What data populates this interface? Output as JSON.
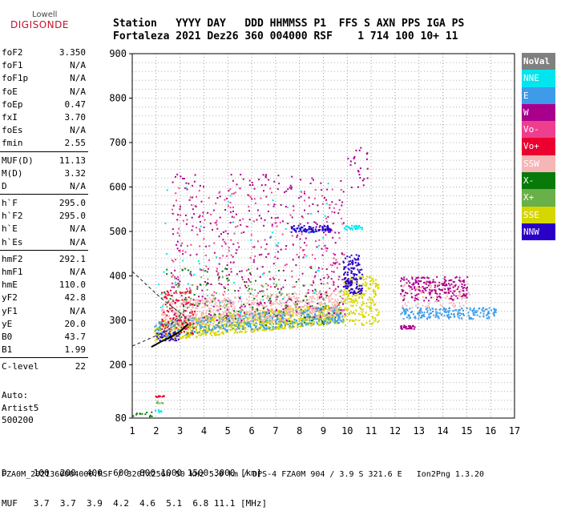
{
  "logo": {
    "line1": "Lowell",
    "line2": "DIGISONDE"
  },
  "header": {
    "line1": "Station   YYYY DAY   DDD HHMMSS P1  FFS S AXN PPS IGA PS",
    "line2": "Fortaleza 2021 Dez26 360 004000 RSF    1 714 100 10+ 11"
  },
  "params": [
    {
      "group": [
        {
          "name": "foF2",
          "value": "3.350"
        },
        {
          "name": "foF1",
          "value": "N/A"
        },
        {
          "name": "foF1p",
          "value": "N/A"
        },
        {
          "name": "foE",
          "value": "N/A"
        },
        {
          "name": "foEp",
          "value": "0.47"
        },
        {
          "name": "fxI",
          "value": "3.70"
        },
        {
          "name": "foEs",
          "value": "N/A"
        },
        {
          "name": "fmin",
          "value": "2.55"
        }
      ]
    },
    {
      "group": [
        {
          "name": "MUF(D)",
          "value": "11.13"
        },
        {
          "name": "M(D)",
          "value": "3.32"
        },
        {
          "name": "D",
          "value": "N/A"
        }
      ]
    },
    {
      "group": [
        {
          "name": "h`F",
          "value": "295.0"
        },
        {
          "name": "h`F2",
          "value": "295.0"
        },
        {
          "name": "h`E",
          "value": "N/A"
        },
        {
          "name": "h`Es",
          "value": "N/A"
        }
      ]
    },
    {
      "group": [
        {
          "name": "hmF2",
          "value": "292.1"
        },
        {
          "name": "hmF1",
          "value": "N/A"
        },
        {
          "name": "hmE",
          "value": "110.0"
        },
        {
          "name": "yF2",
          "value": "42.8"
        },
        {
          "name": "yF1",
          "value": "N/A"
        },
        {
          "name": "yE",
          "value": "20.0"
        },
        {
          "name": "B0",
          "value": "43.7"
        },
        {
          "name": "B1",
          "value": "1.99"
        }
      ]
    },
    {
      "group": [
        {
          "name": "C-level",
          "value": "22"
        }
      ]
    }
  ],
  "auto": {
    "line1": "Auto:",
    "line2": "Artist5",
    "line3": "500200"
  },
  "legend": [
    {
      "label": "NoVal",
      "color": "#808080"
    },
    {
      "label": "NNE",
      "color": "#00e5ee"
    },
    {
      "label": "E",
      "color": "#3d9bea"
    },
    {
      "label": "W",
      "color": "#a8008c"
    },
    {
      "label": "Vo-",
      "color": "#ee3f8f"
    },
    {
      "label": "Vo+",
      "color": "#ec0030"
    },
    {
      "label": "SSW",
      "color": "#f6b6b6"
    },
    {
      "label": "X-",
      "color": "#087a0a"
    },
    {
      "label": "X+",
      "color": "#6ab04a"
    },
    {
      "label": "SSE",
      "color": "#d6d600"
    },
    {
      "label": "NNW",
      "color": "#2a00c8"
    }
  ],
  "chart_data": {
    "type": "scatter",
    "title": "",
    "xlabel": "",
    "ylabel": "",
    "xlim": [
      1,
      17
    ],
    "ylim": [
      80,
      900
    ],
    "x_ticks": [
      "1",
      "2",
      "3",
      "4",
      "5",
      "6",
      "7",
      "8",
      "9",
      "10",
      "11",
      "12",
      "13",
      "14",
      "15",
      "16",
      "17"
    ],
    "y_ticks": [
      "80",
      "200",
      "300",
      "400",
      "500",
      "600",
      "700",
      "800",
      "900"
    ],
    "y_tick_values": [
      80,
      200,
      300,
      400,
      500,
      600,
      700,
      800,
      900
    ],
    "grid": true,
    "clusters": [
      {
        "color": "SSE",
        "fmin": 1.9,
        "fmax": 9.7,
        "hlo": 255,
        "hhi": 300,
        "rise": 40,
        "n": 900
      },
      {
        "color": "SSE",
        "fmin": 9.8,
        "fmax": 11.3,
        "hlo": 290,
        "hhi": 400,
        "rise": 0,
        "n": 220
      },
      {
        "color": "E",
        "fmin": 1.9,
        "fmax": 9.8,
        "hlo": 262,
        "hhi": 300,
        "rise": 35,
        "n": 420
      },
      {
        "color": "SSW",
        "fmin": 2.2,
        "fmax": 9.8,
        "hlo": 285,
        "hhi": 345,
        "rise": 25,
        "n": 700
      },
      {
        "color": "SSW",
        "fmin": 12.2,
        "fmax": 15.1,
        "hlo": 330,
        "hhi": 390,
        "rise": 0,
        "n": 120
      },
      {
        "color": "W",
        "fmin": 2.6,
        "fmax": 9.9,
        "hlo": 300,
        "hhi": 630,
        "rise": 0,
        "n": 380
      },
      {
        "color": "Vo-",
        "fmin": 2.6,
        "fmax": 9.9,
        "hlo": 310,
        "hhi": 600,
        "rise": 0,
        "n": 240
      },
      {
        "color": "Vo+",
        "fmin": 2.2,
        "fmax": 3.6,
        "hlo": 270,
        "hhi": 370,
        "rise": 0,
        "n": 110
      },
      {
        "color": "X-",
        "fmin": 2.2,
        "fmax": 9.8,
        "hlo": 290,
        "hhi": 420,
        "rise": 0,
        "n": 90
      },
      {
        "color": "X+",
        "fmin": 2.2,
        "fmax": 9.8,
        "hlo": 280,
        "hhi": 400,
        "rise": 0,
        "n": 120
      },
      {
        "color": "NNE",
        "fmin": 2.0,
        "fmax": 9.5,
        "hlo": 290,
        "hhi": 620,
        "rise": 0,
        "n": 60
      },
      {
        "color": "NNW",
        "fmin": 9.8,
        "fmax": 10.6,
        "hlo": 360,
        "hhi": 450,
        "rise": 0,
        "n": 140
      },
      {
        "color": "NNW",
        "fmin": 7.6,
        "fmax": 9.3,
        "hlo": 500,
        "hhi": 515,
        "rise": 0,
        "n": 90
      },
      {
        "color": "NNW",
        "fmin": 2.0,
        "fmax": 3.0,
        "hlo": 255,
        "hhi": 275,
        "rise": 0,
        "n": 40
      },
      {
        "color": "W",
        "fmin": 12.2,
        "fmax": 15.0,
        "hlo": 345,
        "hhi": 400,
        "rise": 0,
        "n": 200
      },
      {
        "color": "E",
        "fmin": 12.2,
        "fmax": 16.2,
        "hlo": 305,
        "hhi": 330,
        "rise": 0,
        "n": 200
      },
      {
        "color": "W",
        "fmin": 10.0,
        "fmax": 10.9,
        "hlo": 600,
        "hhi": 690,
        "rise": 0,
        "n": 25
      },
      {
        "color": "NNE",
        "fmin": 9.8,
        "fmax": 10.6,
        "hlo": 505,
        "hhi": 515,
        "rise": 0,
        "n": 30
      },
      {
        "color": "W",
        "fmin": 12.2,
        "fmax": 12.8,
        "hlo": 282,
        "hhi": 290,
        "rise": 0,
        "n": 30
      },
      {
        "color": "Vo+",
        "fmin": 1.9,
        "fmax": 2.3,
        "hlo": 128,
        "hhi": 132,
        "rise": 0,
        "n": 10
      },
      {
        "color": "X-",
        "fmin": 1.0,
        "fmax": 1.8,
        "hlo": 85,
        "hhi": 95,
        "rise": 0,
        "n": 12
      },
      {
        "color": "NNE",
        "fmin": 1.9,
        "fmax": 2.2,
        "hlo": 95,
        "hhi": 100,
        "rise": 0,
        "n": 6
      },
      {
        "color": "X+",
        "fmin": 2.0,
        "fmax": 2.3,
        "hlo": 115,
        "hhi": 120,
        "rise": 0,
        "n": 6
      }
    ],
    "profile_curve": [
      [
        1.8,
        240
      ],
      [
        2.2,
        252
      ],
      [
        2.6,
        262
      ],
      [
        3.0,
        275
      ],
      [
        3.35,
        292
      ]
    ],
    "dashed_lines": [
      [
        [
          1.0,
          410
        ],
        [
          2.2,
          350
        ],
        [
          3.4,
          300
        ]
      ],
      [
        [
          1.0,
          242
        ],
        [
          2.2,
          270
        ],
        [
          3.35,
          330
        ]
      ]
    ]
  },
  "footer": {
    "d_row": "D     100  200  400  600  800 1000 1500 3000 [km]",
    "muf_row": "MUF   3.7  3.7  3.9  4.2  4.6  5.1  6.8 11.1 [MHz]",
    "info": "FZA0M_2021360004000.RSF / 320fx256h 50 kHz 5.0 km / DPS-4 FZA0M 904 / 3.9 S 321.6 E   Ion2Png 1.3.20"
  }
}
